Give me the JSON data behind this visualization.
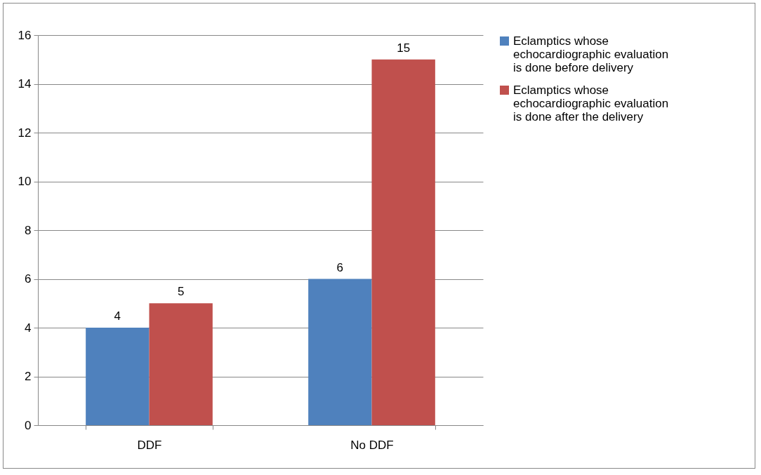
{
  "chart_data": {
    "type": "bar",
    "categories": [
      "DDF",
      "No DDF"
    ],
    "series": [
      {
        "name": "Eclamptics whose echocardiographic evaluation is done before delivery",
        "color": "#4f81bd",
        "values": [
          4,
          6
        ]
      },
      {
        "name": "Eclamptics whose echocardiographic evaluation is done after the delivery",
        "color": "#c0504d",
        "values": [
          5,
          15
        ]
      }
    ],
    "ylim": [
      0,
      16
    ],
    "yticks": [
      0,
      2,
      4,
      6,
      8,
      10,
      12,
      14,
      16
    ],
    "grid": "y",
    "legend": "right",
    "data_labels": true
  }
}
